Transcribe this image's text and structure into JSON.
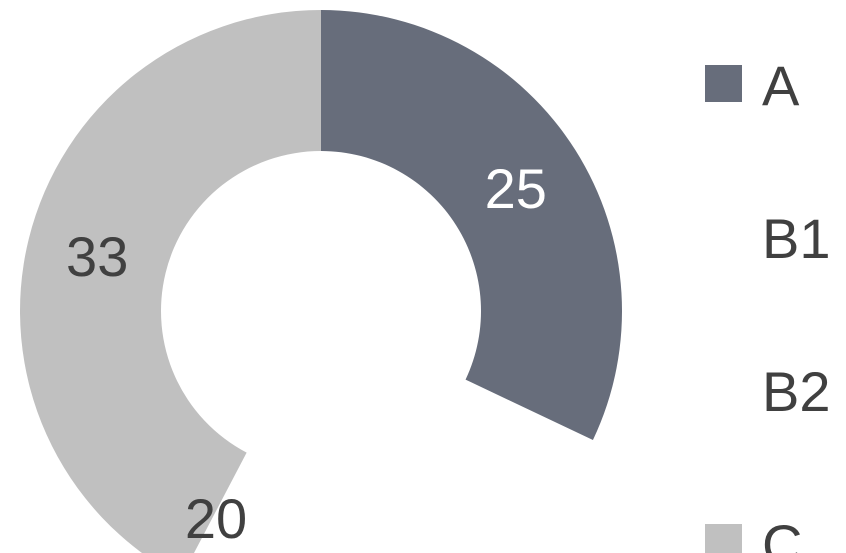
{
  "chart_data": {
    "type": "pie",
    "variant": "doughnut",
    "title": "",
    "categories": [
      "A",
      "B1",
      "B2",
      "C"
    ],
    "values": [
      25,
      0,
      0,
      33
    ],
    "data_labels": [
      "25",
      "",
      "",
      "33"
    ],
    "gap_label": "20",
    "colors": [
      "#676d7b",
      "#ffffff",
      "#ffffff",
      "#c0c0c0"
    ],
    "data_label_colors": [
      "#ffffff",
      "#404040",
      "#404040",
      "#404040"
    ],
    "legend": {
      "position": "right",
      "entries": [
        {
          "label": "A",
          "color": "#676d7b",
          "swatch": true
        },
        {
          "label": "B1",
          "color": "#ffffff",
          "swatch": false
        },
        {
          "label": "B2",
          "color": "#ffffff",
          "swatch": false
        },
        {
          "label": "C",
          "color": "#c0c0c0",
          "swatch": true
        }
      ]
    }
  }
}
